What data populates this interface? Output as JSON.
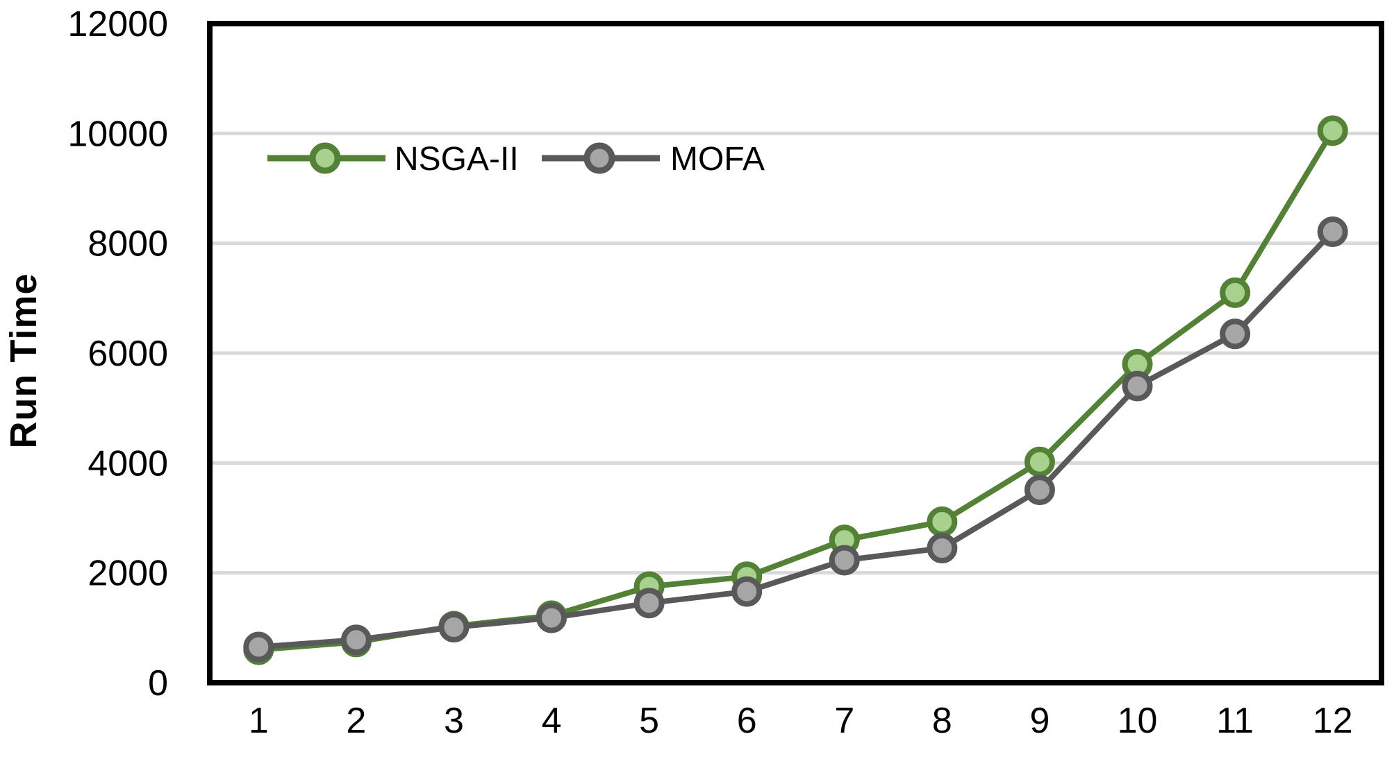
{
  "chart_data": {
    "type": "line",
    "title": "",
    "xlabel": "",
    "ylabel": "Run Time",
    "categories": [
      "1",
      "2",
      "3",
      "4",
      "5",
      "6",
      "7",
      "8",
      "9",
      "10",
      "11",
      "12"
    ],
    "y_ticks": [
      0,
      2000,
      4000,
      6000,
      8000,
      10000,
      12000
    ],
    "ylim": [
      0,
      12000
    ],
    "grid": "horizontal-only",
    "legend_position": "top-left-inside",
    "series": [
      {
        "name": "NSGA-II",
        "line_color": "#538135",
        "marker_fill": "#a9d18e",
        "values": [
          600,
          740,
          1030,
          1220,
          1750,
          1930,
          2600,
          2930,
          4020,
          5800,
          7100,
          10050
        ]
      },
      {
        "name": "MOFA",
        "line_color": "#595959",
        "marker_fill": "#a6a6a6",
        "values": [
          650,
          780,
          1010,
          1180,
          1450,
          1660,
          2230,
          2450,
          3510,
          5400,
          6350,
          8210
        ]
      }
    ]
  },
  "colors": {
    "background": "#ffffff",
    "plot_border": "#000000",
    "gridline": "#d9d9d9",
    "text": "#000000"
  }
}
